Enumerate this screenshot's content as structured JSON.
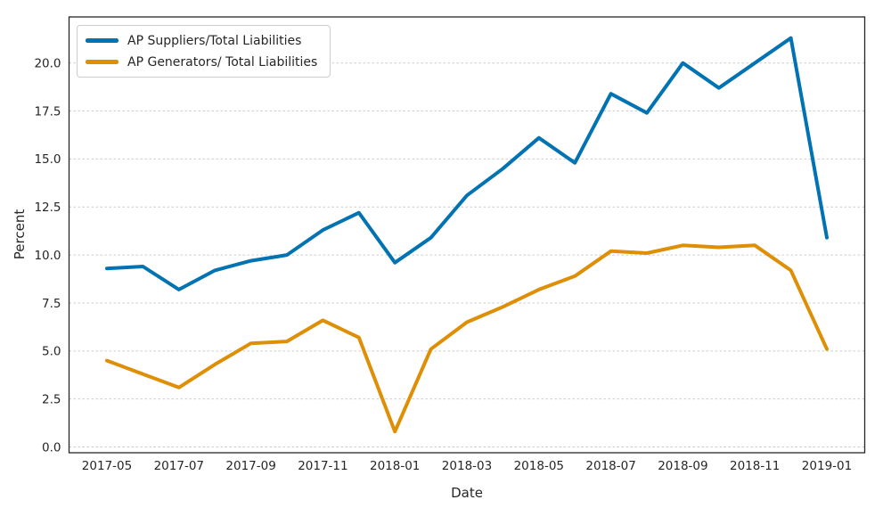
{
  "chart_data": {
    "type": "line",
    "title": "",
    "xlabel": "Date",
    "ylabel": "Percent",
    "grid": "horizontal-dashed",
    "legend_position": "upper-left",
    "ylim": [
      -0.3,
      22.4
    ],
    "yticks": [
      "0.0",
      "2.5",
      "5.0",
      "7.5",
      "10.0",
      "12.5",
      "15.0",
      "17.5",
      "20.0"
    ],
    "xtick_labels": [
      "2017-05",
      "2017-07",
      "2017-09",
      "2017-11",
      "2018-01",
      "2018-03",
      "2018-05",
      "2018-07",
      "2018-09",
      "2018-11",
      "2019-01"
    ],
    "categories": [
      "2017-05",
      "2017-06",
      "2017-07",
      "2017-08",
      "2017-09",
      "2017-10",
      "2017-11",
      "2017-12",
      "2018-01",
      "2018-02",
      "2018-03",
      "2018-04",
      "2018-05",
      "2018-06",
      "2018-07",
      "2018-08",
      "2018-09",
      "2018-10",
      "2018-11",
      "2018-12",
      "2019-01"
    ],
    "series": [
      {
        "name": "AP Suppliers/Total Liabilities",
        "color": "#0173b2",
        "values": [
          9.3,
          9.4,
          8.2,
          9.2,
          9.7,
          10.0,
          11.3,
          12.2,
          9.6,
          10.9,
          13.1,
          14.5,
          16.1,
          14.8,
          18.4,
          17.4,
          20.0,
          18.7,
          20.0,
          21.3,
          10.9
        ]
      },
      {
        "name": "AP Generators/ Total Liabilities",
        "color": "#de8f05",
        "values": [
          4.5,
          3.8,
          3.1,
          4.3,
          5.4,
          5.5,
          6.6,
          5.7,
          0.8,
          5.1,
          6.5,
          7.3,
          8.2,
          8.9,
          10.2,
          10.1,
          10.5,
          10.4,
          10.5,
          9.2,
          5.1
        ]
      }
    ]
  }
}
